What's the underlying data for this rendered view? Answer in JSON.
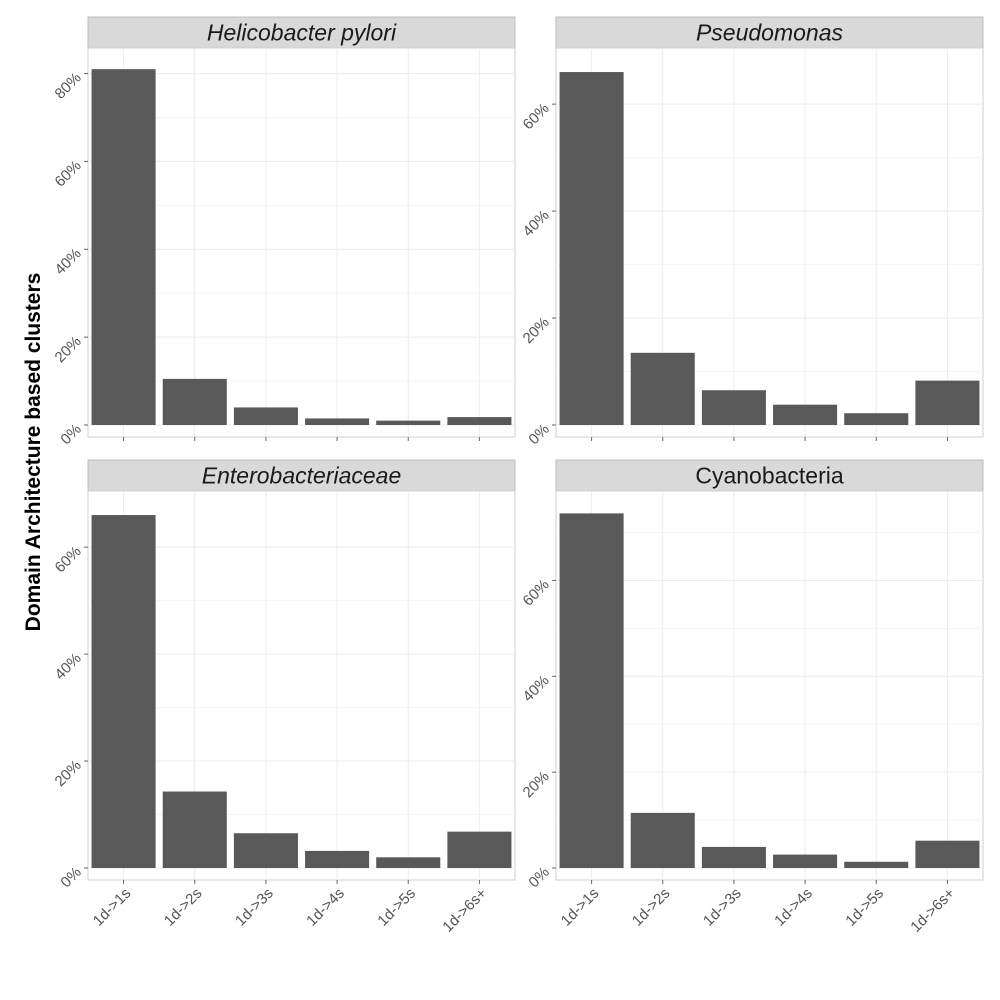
{
  "figure": {
    "ylabel": "Domain Architecture based clusters"
  },
  "chart_data": [
    {
      "type": "bar",
      "title": "Helicobacter pylori",
      "title_italic": true,
      "categories": [
        "1d->1s",
        "1d->2s",
        "1d->3s",
        "1d->4s",
        "1d->5s",
        "1d->6s+"
      ],
      "values": [
        81,
        10.5,
        4,
        1.5,
        1,
        1.8
      ],
      "yticks": [
        0,
        20,
        40,
        60,
        80
      ],
      "ytick_labels": [
        "0%",
        "20%",
        "40%",
        "60%",
        "80%"
      ],
      "ylim": [
        0,
        84
      ],
      "xlabel": "",
      "ylabel": "",
      "grid": true,
      "bar_color": "#595959"
    },
    {
      "type": "bar",
      "title": "Pseudomonas",
      "title_italic": true,
      "categories": [
        "1d->1s",
        "1d->2s",
        "1d->3s",
        "1d->4s",
        "1d->5s",
        "1d->6s+"
      ],
      "values": [
        66,
        13.5,
        6.5,
        3.8,
        2.2,
        8.3
      ],
      "yticks": [
        0,
        20,
        40,
        60
      ],
      "ytick_labels": [
        "0%",
        "20%",
        "40%",
        "60%"
      ],
      "ylim": [
        0,
        69
      ],
      "xlabel": "",
      "ylabel": "",
      "grid": true,
      "bar_color": "#595959"
    },
    {
      "type": "bar",
      "title": "Enterobacteriaceae",
      "title_italic": true,
      "categories": [
        "1d->1s",
        "1d->2s",
        "1d->3s",
        "1d->4s",
        "1d->5s",
        "1d->6s+"
      ],
      "values": [
        66,
        14.3,
        6.5,
        3.2,
        2,
        6.8
      ],
      "yticks": [
        0,
        20,
        40,
        60
      ],
      "ytick_labels": [
        "0%",
        "20%",
        "40%",
        "60%"
      ],
      "ylim": [
        0,
        69
      ],
      "xlabel": "",
      "ylabel": "",
      "grid": true,
      "bar_color": "#595959"
    },
    {
      "type": "bar",
      "title": "Cyanobacteria",
      "title_italic": false,
      "categories": [
        "1d->1s",
        "1d->2s",
        "1d->3s",
        "1d->4s",
        "1d->5s",
        "1d->6s+"
      ],
      "values": [
        74,
        11.5,
        4.4,
        2.8,
        1.3,
        5.7
      ],
      "yticks": [
        0,
        20,
        40,
        60
      ],
      "ytick_labels": [
        "0%",
        "20%",
        "40%",
        "60%"
      ],
      "ylim": [
        0,
        77
      ],
      "xlabel": "",
      "ylabel": "",
      "grid": true,
      "bar_color": "#595959"
    }
  ]
}
